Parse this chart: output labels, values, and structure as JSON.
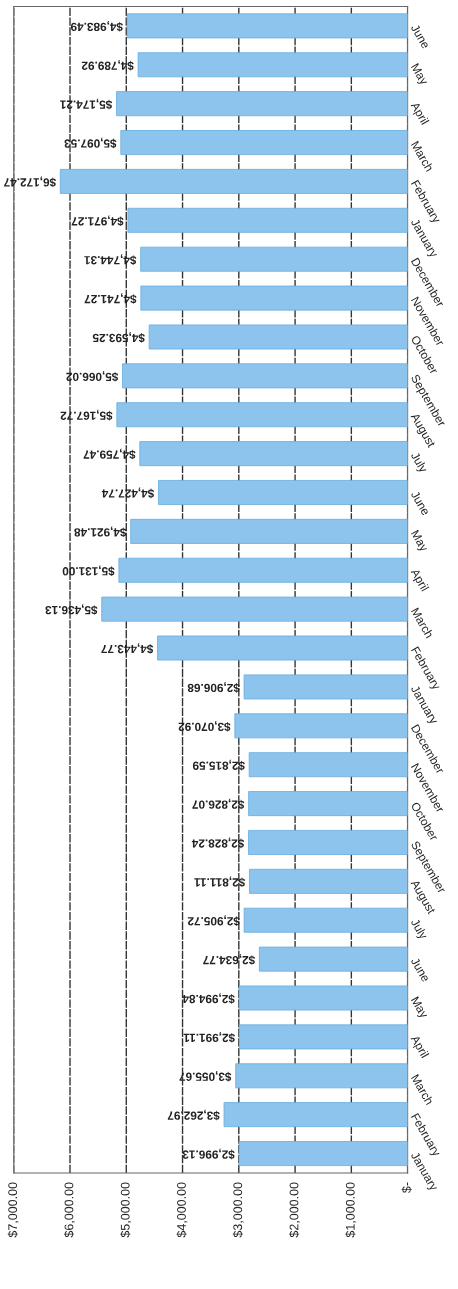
{
  "chart_data": {
    "type": "bar",
    "orientation": "horizontal",
    "categories": [
      "June",
      "May",
      "April",
      "March",
      "February",
      "January",
      "December",
      "November",
      "October",
      "September",
      "August",
      "July",
      "June",
      "May",
      "April",
      "March",
      "February",
      "January",
      "December",
      "November",
      "October",
      "September",
      "August",
      "July",
      "June",
      "May",
      "April",
      "March",
      "February",
      "January"
    ],
    "values": [
      4983.49,
      4789.92,
      5174.21,
      5097.53,
      6172.47,
      4971.27,
      4744.31,
      4741.27,
      4593.25,
      5066.02,
      5167.72,
      4759.47,
      4427.74,
      4921.48,
      5131.0,
      5436.13,
      4443.77,
      2906.68,
      3070.92,
      2815.59,
      2826.07,
      2828.24,
      2811.11,
      2905.72,
      2634.77,
      2994.84,
      2991.11,
      3055.67,
      3262.97,
      2996.13
    ],
    "value_labels": [
      "$4,983.49",
      "$4,789.92",
      "$5,174.21",
      "$5,097.53",
      "$6,172.47",
      "$4,971.27",
      "$4,744.31",
      "$4,741.27",
      "$4,593.25",
      "$5,066.02",
      "$5,167.72",
      "$4,759.47",
      "$4,427.74",
      "$4,921.48",
      "$5,131.00",
      "$5,436.13",
      "$4,443.77",
      "$2,906.68",
      "$3,070.92",
      "$2,815.59",
      "$2,826.07",
      "$2,828.24",
      "$2,811.11",
      "$2,905.72",
      "$2,634.77",
      "$2,994.84",
      "$2,991.11",
      "$3,055.67",
      "$3,262.97",
      "$2,996.13"
    ],
    "color": "#8cc4ee",
    "xlim": [
      7000,
      0
    ],
    "xticks": [
      {
        "value": 7000,
        "label": "$7,000.00"
      },
      {
        "value": 6000,
        "label": "$6,000.00"
      },
      {
        "value": 5000,
        "label": "$5,000.00"
      },
      {
        "value": 4000,
        "label": "$4,000.00"
      },
      {
        "value": 3000,
        "label": "$3,000.00"
      },
      {
        "value": 2000,
        "label": "$2,000.00"
      },
      {
        "value": 1000,
        "label": "$1,000.00"
      },
      {
        "value": 0,
        "label": "$-"
      }
    ],
    "grid": "x"
  }
}
